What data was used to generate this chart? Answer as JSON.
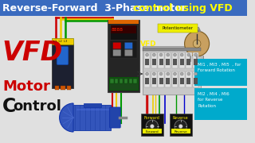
{
  "title_bg": "#3a6bbf",
  "title_white": "Reverse-Forward  3-Phase motor ",
  "title_yellow": "control using VFD",
  "title_fontsize": 9.0,
  "main_bg": "#e0e0e0",
  "vfd_big_color": "#cc0000",
  "motor_color": "#cc0000",
  "control_c_big": true,
  "info_box_bg": "#00aacc",
  "info_box1_text": "MI1 , MI3 , MI5  , for\nForward Rotation",
  "info_box2_text": "MI2 , MI4 , MI6\nfor Reverse\nRotation",
  "pot_label_bg": "#ffee00",
  "pot_label_text": "Potentiometer",
  "vfd_label_color": "#ffee00",
  "forward_label_color": "#ffee00",
  "reverse_label_color": "#ffee00",
  "wire_red": "#cc0000",
  "wire_yellow": "#eecc00",
  "wire_green": "#009900",
  "wire_blue": "#0000cc"
}
